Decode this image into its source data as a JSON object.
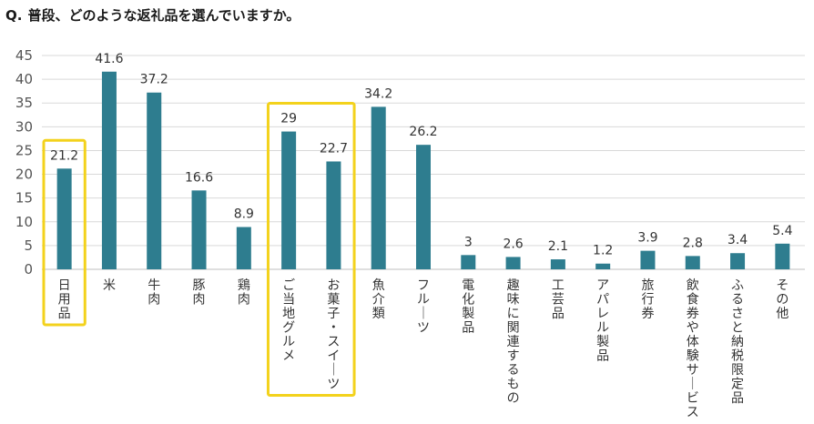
{
  "title": {
    "prefix": "Q.",
    "text": "普段、どのような返礼品を選んでいますか。"
  },
  "colors": {
    "bar": "#2e7d8f",
    "highlight": "#f3d21c",
    "grid": "#d9d9d9"
  },
  "chart_data": {
    "type": "bar",
    "title": "普段、どのような返礼品を選んでいますか。",
    "categories": [
      "日用品",
      "米",
      "牛肉",
      "豚肉",
      "鶏肉",
      "ご当地グルメ",
      "お菓子・スイーツ",
      "魚介類",
      "フルーツ",
      "電化製品",
      "趣味に関連するもの",
      "工芸品",
      "アパレル製品",
      "旅行券",
      "飲食券や体験サービス",
      "ふるさと納税限定品",
      "その他"
    ],
    "values": [
      21.2,
      41.6,
      37.2,
      16.6,
      8.9,
      29,
      22.7,
      34.2,
      26.2,
      3,
      2.6,
      2.1,
      1.2,
      3.9,
      2.8,
      3.4,
      5.4
    ],
    "value_labels": [
      "21.2",
      "41.6",
      "37.2",
      "16.6",
      "8.9",
      "29",
      "22.7",
      "34.2",
      "26.2",
      "3",
      "2.6",
      "2.1",
      "1.2",
      "3.9",
      "2.8",
      "3.4",
      "5.4"
    ],
    "yticks": [
      "0",
      "5",
      "10",
      "15",
      "20",
      "25",
      "30",
      "35",
      "40",
      "45"
    ],
    "ylim": [
      0,
      45
    ],
    "grid": true,
    "highlighted_groups": [
      [
        0
      ],
      [
        5,
        6
      ]
    ],
    "xlabel": "",
    "ylabel": ""
  }
}
